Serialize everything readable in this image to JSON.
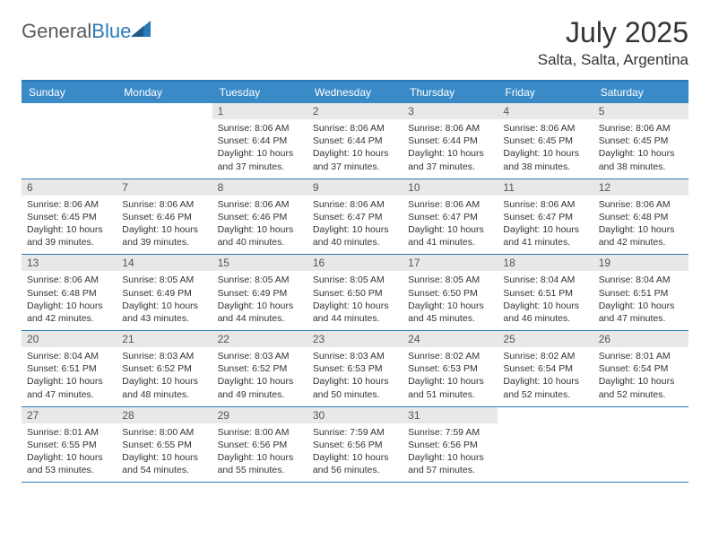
{
  "logo": {
    "word1": "General",
    "word2": "Blue"
  },
  "header": {
    "title": "July 2025",
    "location": "Salta, Salta, Argentina"
  },
  "colors": {
    "header_bar": "#3a8ac8",
    "rule": "#2a7ab8",
    "daynum_bg": "#e8e8e8",
    "text": "#333333"
  },
  "day_names": [
    "Sunday",
    "Monday",
    "Tuesday",
    "Wednesday",
    "Thursday",
    "Friday",
    "Saturday"
  ],
  "weeks": [
    [
      {
        "empty": true
      },
      {
        "empty": true
      },
      {
        "n": "1",
        "sunrise": "8:06 AM",
        "sunset": "6:44 PM",
        "day_h": 10,
        "day_m": 37
      },
      {
        "n": "2",
        "sunrise": "8:06 AM",
        "sunset": "6:44 PM",
        "day_h": 10,
        "day_m": 37
      },
      {
        "n": "3",
        "sunrise": "8:06 AM",
        "sunset": "6:44 PM",
        "day_h": 10,
        "day_m": 37
      },
      {
        "n": "4",
        "sunrise": "8:06 AM",
        "sunset": "6:45 PM",
        "day_h": 10,
        "day_m": 38
      },
      {
        "n": "5",
        "sunrise": "8:06 AM",
        "sunset": "6:45 PM",
        "day_h": 10,
        "day_m": 38
      }
    ],
    [
      {
        "n": "6",
        "sunrise": "8:06 AM",
        "sunset": "6:45 PM",
        "day_h": 10,
        "day_m": 39
      },
      {
        "n": "7",
        "sunrise": "8:06 AM",
        "sunset": "6:46 PM",
        "day_h": 10,
        "day_m": 39
      },
      {
        "n": "8",
        "sunrise": "8:06 AM",
        "sunset": "6:46 PM",
        "day_h": 10,
        "day_m": 40
      },
      {
        "n": "9",
        "sunrise": "8:06 AM",
        "sunset": "6:47 PM",
        "day_h": 10,
        "day_m": 40
      },
      {
        "n": "10",
        "sunrise": "8:06 AM",
        "sunset": "6:47 PM",
        "day_h": 10,
        "day_m": 41
      },
      {
        "n": "11",
        "sunrise": "8:06 AM",
        "sunset": "6:47 PM",
        "day_h": 10,
        "day_m": 41
      },
      {
        "n": "12",
        "sunrise": "8:06 AM",
        "sunset": "6:48 PM",
        "day_h": 10,
        "day_m": 42
      }
    ],
    [
      {
        "n": "13",
        "sunrise": "8:06 AM",
        "sunset": "6:48 PM",
        "day_h": 10,
        "day_m": 42
      },
      {
        "n": "14",
        "sunrise": "8:05 AM",
        "sunset": "6:49 PM",
        "day_h": 10,
        "day_m": 43
      },
      {
        "n": "15",
        "sunrise": "8:05 AM",
        "sunset": "6:49 PM",
        "day_h": 10,
        "day_m": 44
      },
      {
        "n": "16",
        "sunrise": "8:05 AM",
        "sunset": "6:50 PM",
        "day_h": 10,
        "day_m": 44
      },
      {
        "n": "17",
        "sunrise": "8:05 AM",
        "sunset": "6:50 PM",
        "day_h": 10,
        "day_m": 45
      },
      {
        "n": "18",
        "sunrise": "8:04 AM",
        "sunset": "6:51 PM",
        "day_h": 10,
        "day_m": 46
      },
      {
        "n": "19",
        "sunrise": "8:04 AM",
        "sunset": "6:51 PM",
        "day_h": 10,
        "day_m": 47
      }
    ],
    [
      {
        "n": "20",
        "sunrise": "8:04 AM",
        "sunset": "6:51 PM",
        "day_h": 10,
        "day_m": 47
      },
      {
        "n": "21",
        "sunrise": "8:03 AM",
        "sunset": "6:52 PM",
        "day_h": 10,
        "day_m": 48
      },
      {
        "n": "22",
        "sunrise": "8:03 AM",
        "sunset": "6:52 PM",
        "day_h": 10,
        "day_m": 49
      },
      {
        "n": "23",
        "sunrise": "8:03 AM",
        "sunset": "6:53 PM",
        "day_h": 10,
        "day_m": 50
      },
      {
        "n": "24",
        "sunrise": "8:02 AM",
        "sunset": "6:53 PM",
        "day_h": 10,
        "day_m": 51
      },
      {
        "n": "25",
        "sunrise": "8:02 AM",
        "sunset": "6:54 PM",
        "day_h": 10,
        "day_m": 52
      },
      {
        "n": "26",
        "sunrise": "8:01 AM",
        "sunset": "6:54 PM",
        "day_h": 10,
        "day_m": 52
      }
    ],
    [
      {
        "n": "27",
        "sunrise": "8:01 AM",
        "sunset": "6:55 PM",
        "day_h": 10,
        "day_m": 53
      },
      {
        "n": "28",
        "sunrise": "8:00 AM",
        "sunset": "6:55 PM",
        "day_h": 10,
        "day_m": 54
      },
      {
        "n": "29",
        "sunrise": "8:00 AM",
        "sunset": "6:56 PM",
        "day_h": 10,
        "day_m": 55
      },
      {
        "n": "30",
        "sunrise": "7:59 AM",
        "sunset": "6:56 PM",
        "day_h": 10,
        "day_m": 56
      },
      {
        "n": "31",
        "sunrise": "7:59 AM",
        "sunset": "6:56 PM",
        "day_h": 10,
        "day_m": 57
      },
      {
        "empty": true
      },
      {
        "empty": true
      }
    ]
  ],
  "labels": {
    "sunrise": "Sunrise:",
    "sunset": "Sunset:",
    "daylight": "Daylight:",
    "hours": "hours",
    "and": "and",
    "minutes": "minutes."
  }
}
